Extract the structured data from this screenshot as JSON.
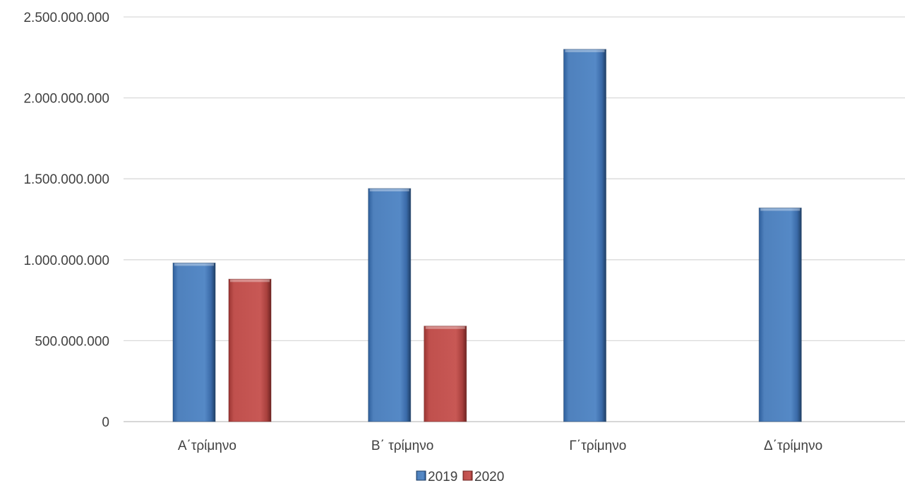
{
  "chart_data": {
    "type": "bar",
    "categories": [
      "Α΄τρίμηνο",
      "Β΄ τρίμηνο",
      "Γ΄τρίμηνο",
      "Δ΄τρίμηνο"
    ],
    "series": [
      {
        "name": "2019",
        "values": [
          980000000,
          1440000000,
          2300000000,
          1320000000
        ],
        "color": "#4F81BD"
      },
      {
        "name": "2020",
        "values": [
          880000000,
          590000000,
          null,
          null
        ],
        "color": "#C0504D"
      }
    ],
    "ylim": [
      0,
      2500000000
    ],
    "yticks": [
      0,
      500000000,
      1000000000,
      1500000000,
      2000000000,
      2500000000
    ],
    "ytick_labels": [
      "0",
      "500.000.000",
      "1.000.000.000",
      "1.500.000.000",
      "2.000.000.000",
      "2.500.000.000"
    ],
    "grid": true,
    "legend_position": "bottom"
  }
}
